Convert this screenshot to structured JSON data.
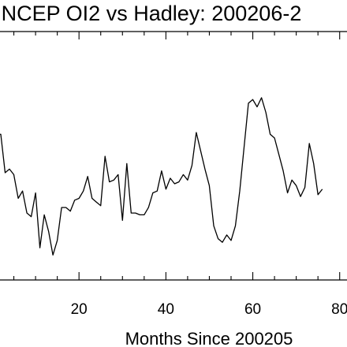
{
  "chart_data": {
    "type": "line",
    "title": "NCEP OI2 vs Hadley: 200206-2",
    "xlabel": "Months Since 200205",
    "ylabel": "",
    "xlim": [
      0,
      83.5
    ],
    "ylim": [
      0,
      1
    ],
    "grid": false,
    "x_ticks": [
      20,
      40,
      60,
      80
    ],
    "x_tick_labels": [
      "20",
      "40",
      "60",
      "80"
    ],
    "series": [
      {
        "values": [
          0.74,
          0.74,
          0.53,
          0.55,
          0.52,
          0.39,
          0.43,
          0.31,
          0.29,
          0.42,
          0.12,
          0.3,
          0.21,
          0.08,
          0.16,
          0.34,
          0.34,
          0.32,
          0.38,
          0.39,
          0.43,
          0.51,
          0.39,
          0.37,
          0.35,
          0.62,
          0.48,
          0.49,
          0.52,
          0.27,
          0.58,
          0.31,
          0.31,
          0.3,
          0.3,
          0.34,
          0.42,
          0.43,
          0.54,
          0.44,
          0.5,
          0.47,
          0.48,
          0.52,
          0.49,
          0.57,
          0.75,
          0.65,
          0.55,
          0.46,
          0.24,
          0.17,
          0.15,
          0.19,
          0.16,
          0.24,
          0.43,
          0.67,
          0.91,
          0.93,
          0.89,
          0.94,
          0.86,
          0.74,
          0.72,
          0.63,
          0.54,
          0.42,
          0.49,
          0.46,
          0.4,
          0.45,
          0.69,
          0.58,
          0.41,
          0.44
        ]
      }
    ]
  }
}
